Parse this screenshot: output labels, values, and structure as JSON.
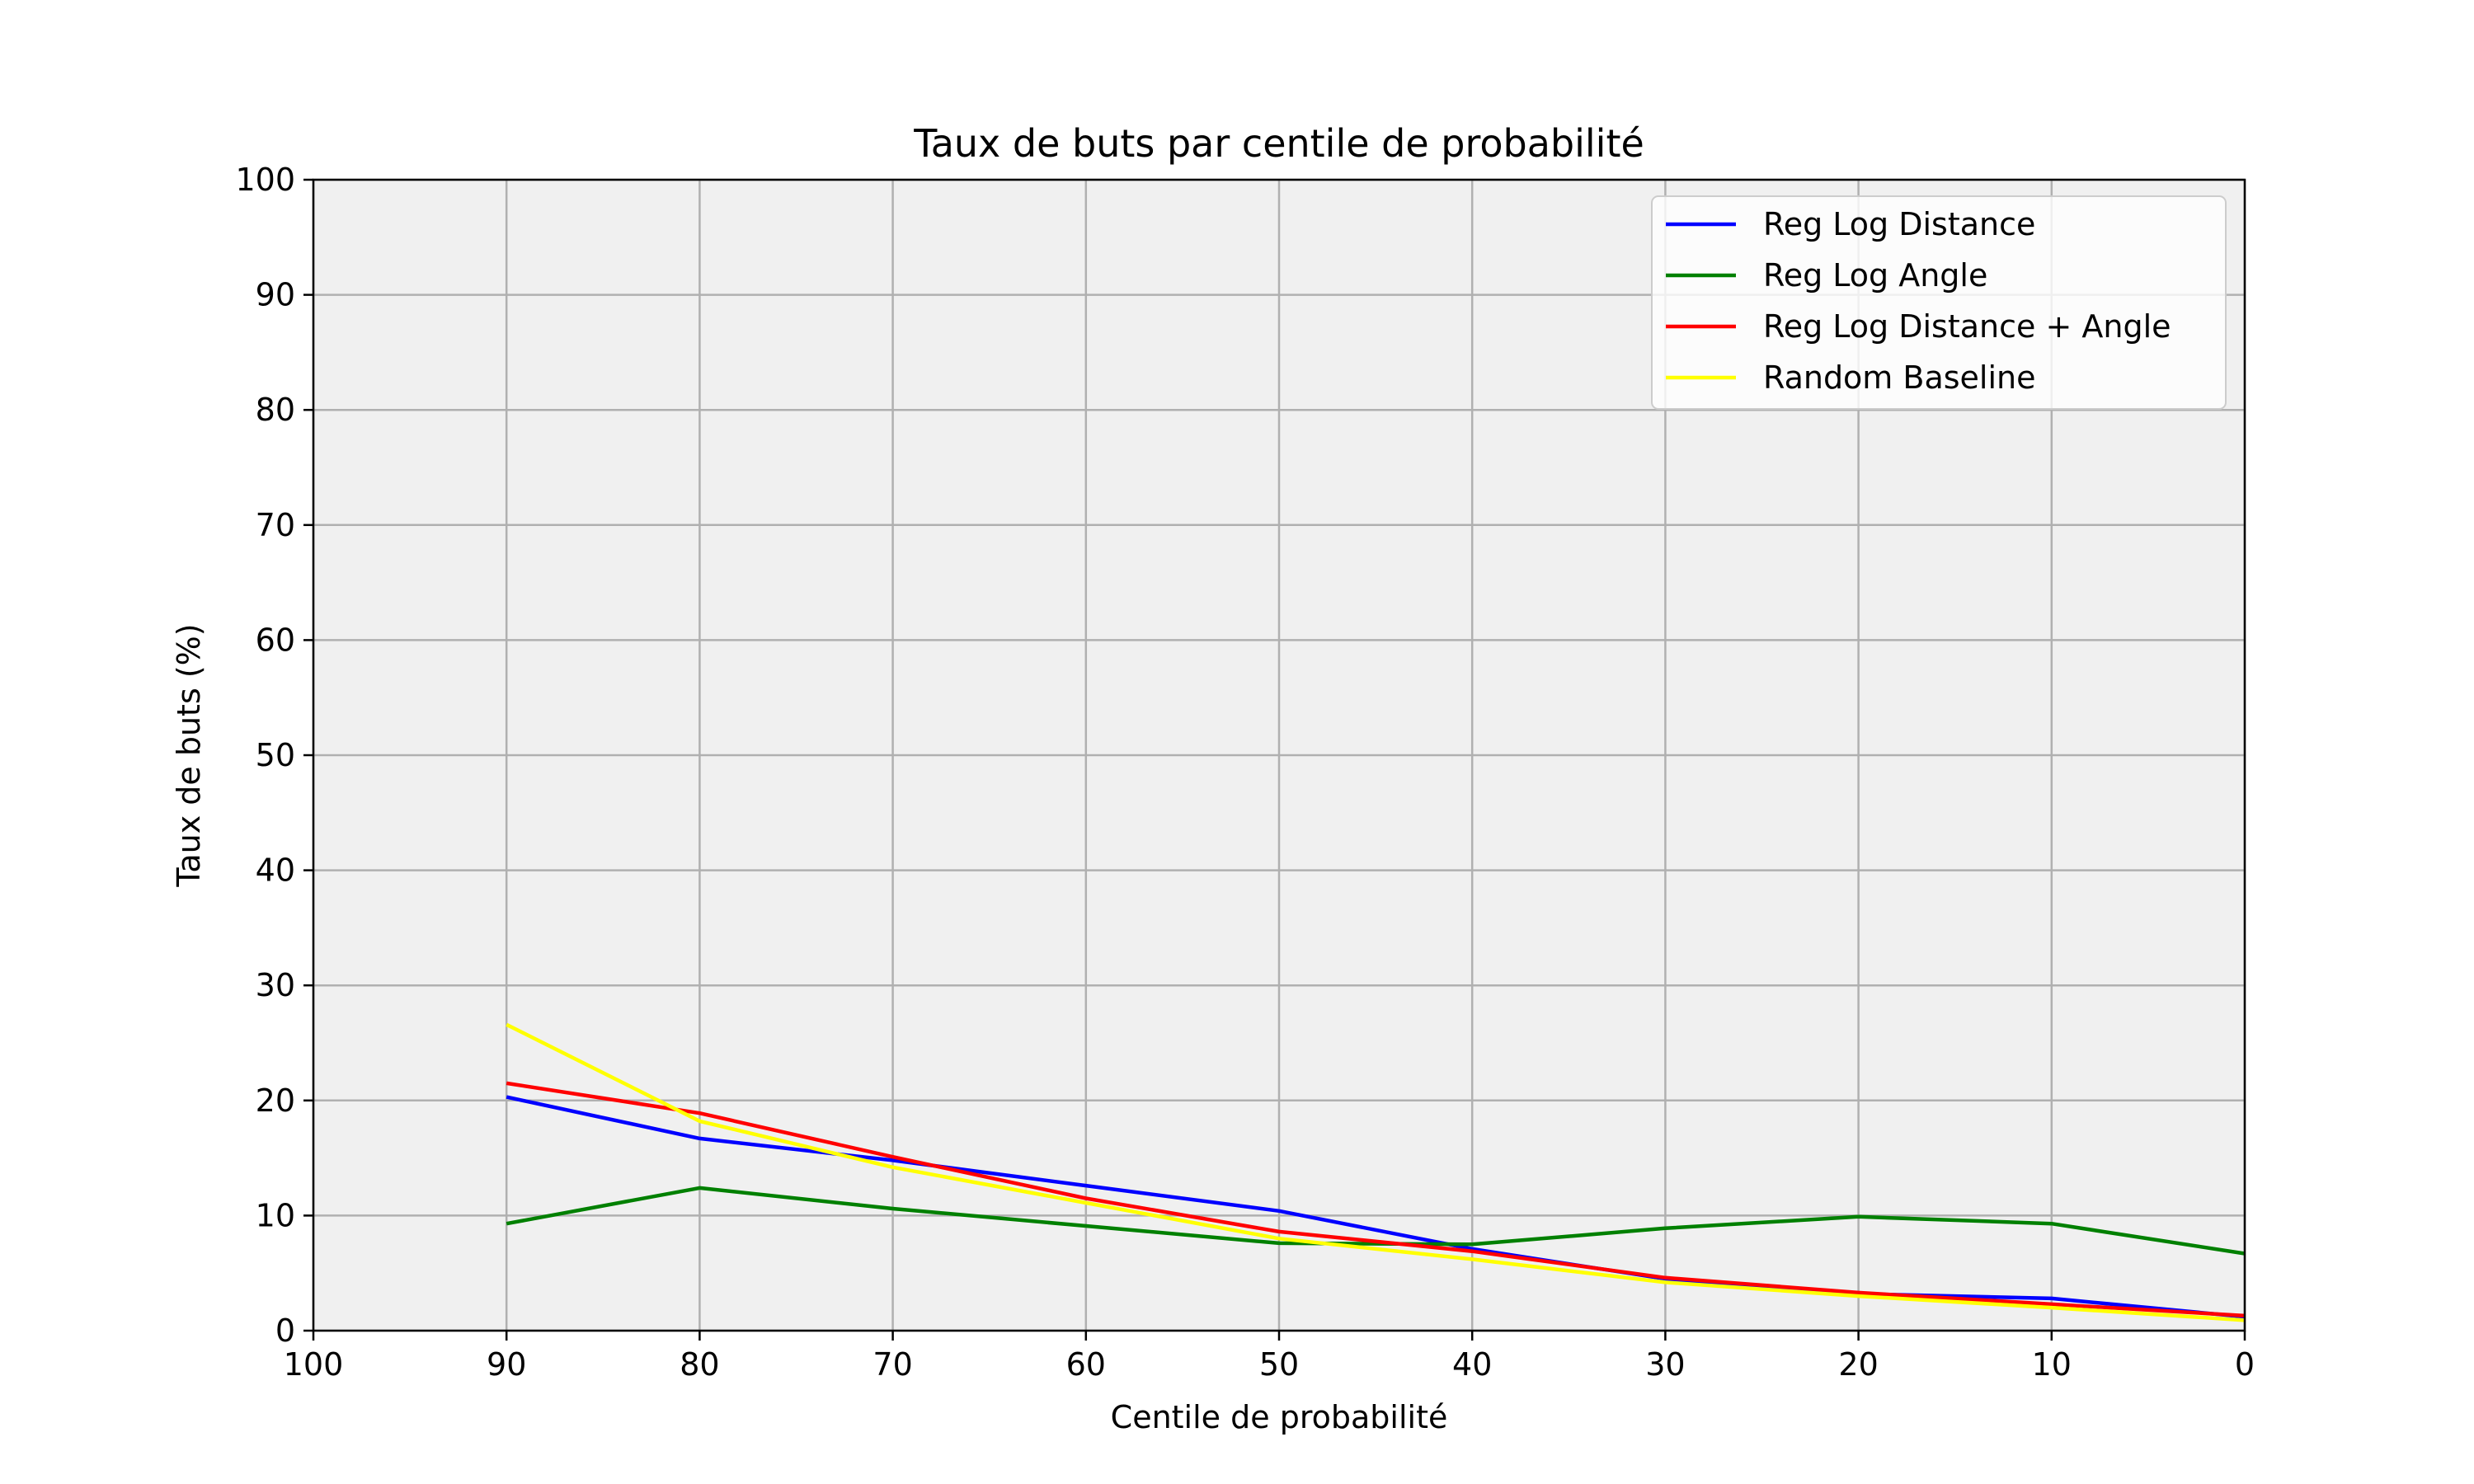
{
  "chart_data": {
    "type": "line",
    "title": "Taux de buts par centile de probabilité",
    "xlabel": "Centile de probabilité",
    "ylabel": "Taux de buts (%)",
    "xlim": [
      100,
      0
    ],
    "ylim": [
      0,
      100
    ],
    "x_ticks": [
      "100",
      "90",
      "80",
      "70",
      "60",
      "50",
      "40",
      "30",
      "20",
      "10",
      "0"
    ],
    "y_ticks": [
      "0",
      "10",
      "20",
      "30",
      "40",
      "50",
      "60",
      "70",
      "80",
      "90",
      "100"
    ],
    "grid": true,
    "legend_position": "top-right",
    "background_color": "#f0f0f0",
    "x": [
      90,
      80,
      70,
      60,
      50,
      40,
      30,
      20,
      10,
      0
    ],
    "series": [
      {
        "name": "Reg Log Distance",
        "color": "#0000ff",
        "values": [
          20.3,
          16.7,
          14.8,
          12.6,
          10.4,
          7.1,
          4.5,
          3.2,
          2.8,
          1.2
        ]
      },
      {
        "name": "Reg Log Angle",
        "color": "#008000",
        "values": [
          9.3,
          12.4,
          10.6,
          9.1,
          7.6,
          7.5,
          8.9,
          9.9,
          9.3,
          6.7
        ]
      },
      {
        "name": "Reg Log Distance + Angle",
        "color": "#ff0000",
        "values": [
          21.5,
          18.9,
          15.1,
          11.5,
          8.6,
          6.9,
          4.6,
          3.3,
          2.3,
          1.3
        ]
      },
      {
        "name": "Random Baseline",
        "color": "#ffff00",
        "values": [
          26.6,
          18.2,
          14.2,
          11.1,
          8.0,
          6.2,
          4.2,
          3.0,
          2.0,
          0.9
        ]
      }
    ]
  }
}
